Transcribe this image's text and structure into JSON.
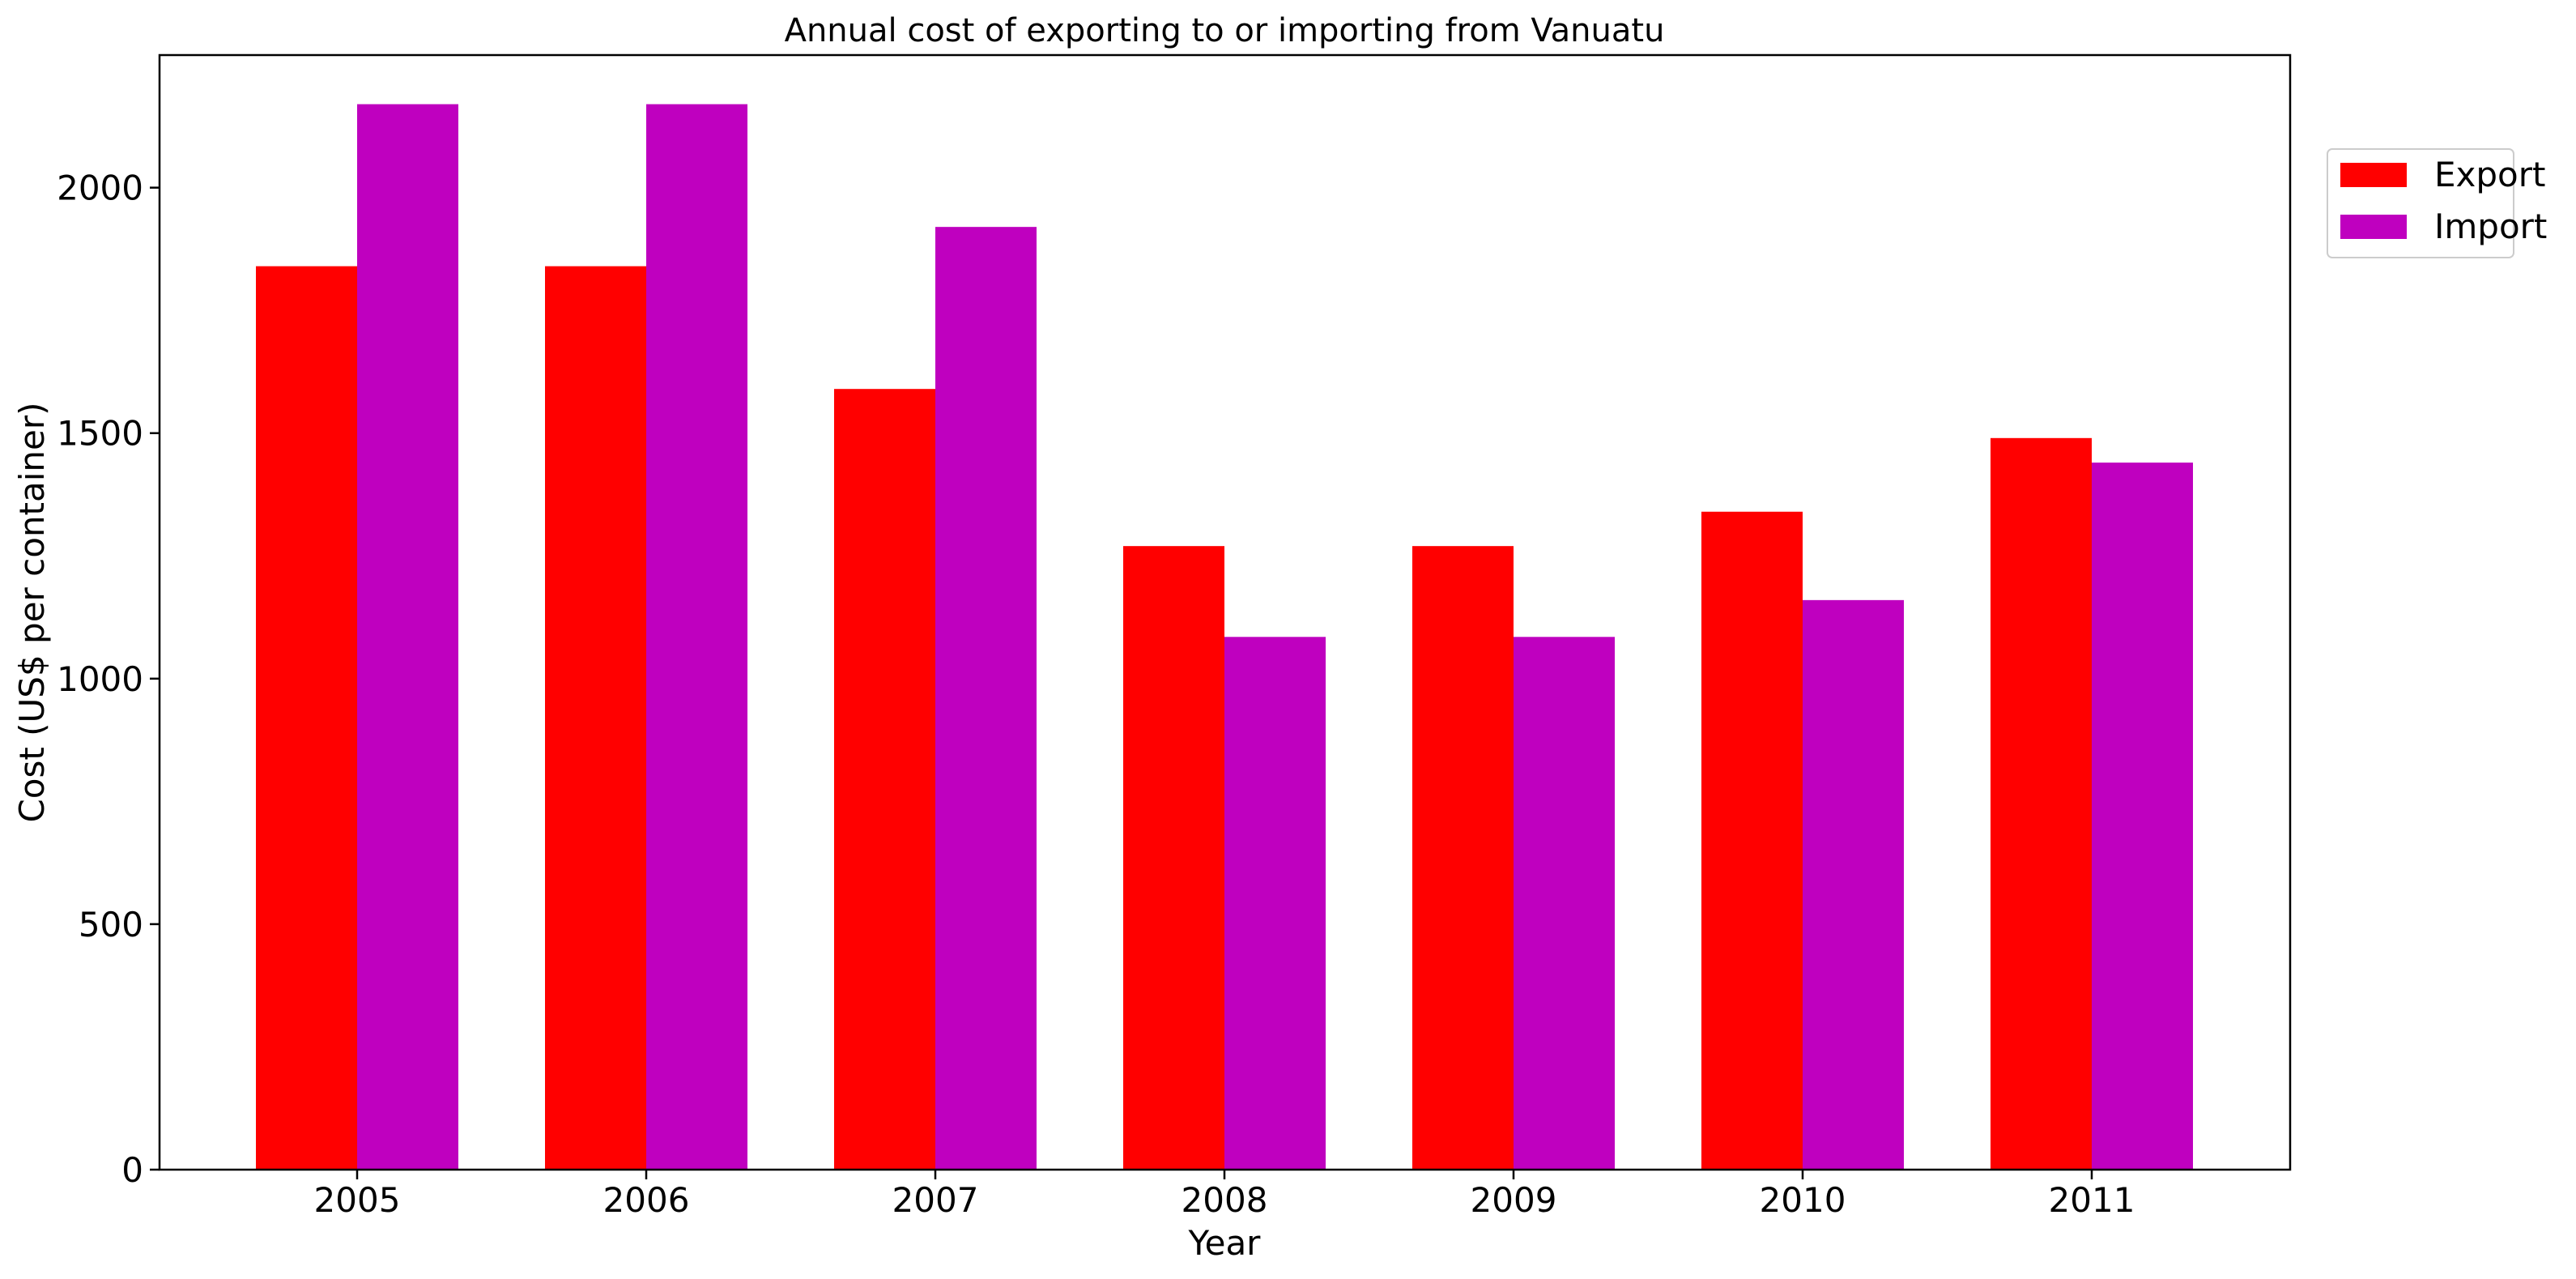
{
  "chart_data": {
    "type": "bar",
    "title": "Annual cost of exporting to or importing from Vanuatu",
    "xlabel": "Year",
    "ylabel": "Cost (US$ per container)",
    "categories": [
      "2005",
      "2006",
      "2007",
      "2008",
      "2009",
      "2010",
      "2011"
    ],
    "series": [
      {
        "name": "Export",
        "color": "#ff0000",
        "values": [
          1840,
          1840,
          1590,
          1270,
          1270,
          1340,
          1490
        ]
      },
      {
        "name": "Import",
        "color": "#bf00bf",
        "values": [
          2170,
          2170,
          1920,
          1085,
          1085,
          1160,
          1440
        ]
      }
    ],
    "ylim": [
      0,
      2270
    ],
    "yticks": [
      0,
      500,
      1000,
      1500,
      2000
    ],
    "grid": false,
    "legend": "upper-right-outside"
  }
}
